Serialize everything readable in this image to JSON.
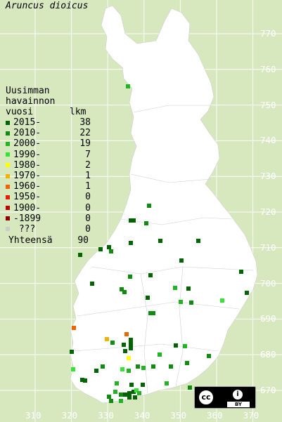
{
  "species": "Aruncus dioicus",
  "legend": {
    "title": [
      "Uusimman",
      "havainnon",
      "vuosi"
    ],
    "count_header": "lkm",
    "rows": [
      {
        "label": "2015-",
        "count": "38",
        "color": "#006400"
      },
      {
        "label": "2010-",
        "count": "22",
        "color": "#118c11"
      },
      {
        "label": "2000-",
        "count": "19",
        "color": "#22b422"
      },
      {
        "label": "1990-",
        "count": "7",
        "color": "#33e633"
      },
      {
        "label": "1980-",
        "count": "2",
        "color": "#ffff00"
      },
      {
        "label": "1970-",
        "count": "1",
        "color": "#f0b400"
      },
      {
        "label": "1960-",
        "count": "1",
        "color": "#f06400"
      },
      {
        "label": "1950-",
        "count": "0",
        "color": "#e02000"
      },
      {
        "label": "1900-",
        "count": "0",
        "color": "#c00000"
      },
      {
        "label": "-1899",
        "count": "0",
        "color": "#8b0000"
      },
      {
        "label": " ???",
        "count": "0",
        "color": "#cccccc"
      }
    ],
    "total_label": "Yhteensä",
    "total_count": "90"
  },
  "northing_labels": [
    "770",
    "760",
    "750",
    "740",
    "730",
    "720",
    "710",
    "700",
    "690",
    "680",
    "670"
  ],
  "easting_labels": [
    "310",
    "320",
    "330",
    "340",
    "350",
    "360",
    "370"
  ],
  "license": {
    "cc": "cc",
    "by": "BY"
  }
}
